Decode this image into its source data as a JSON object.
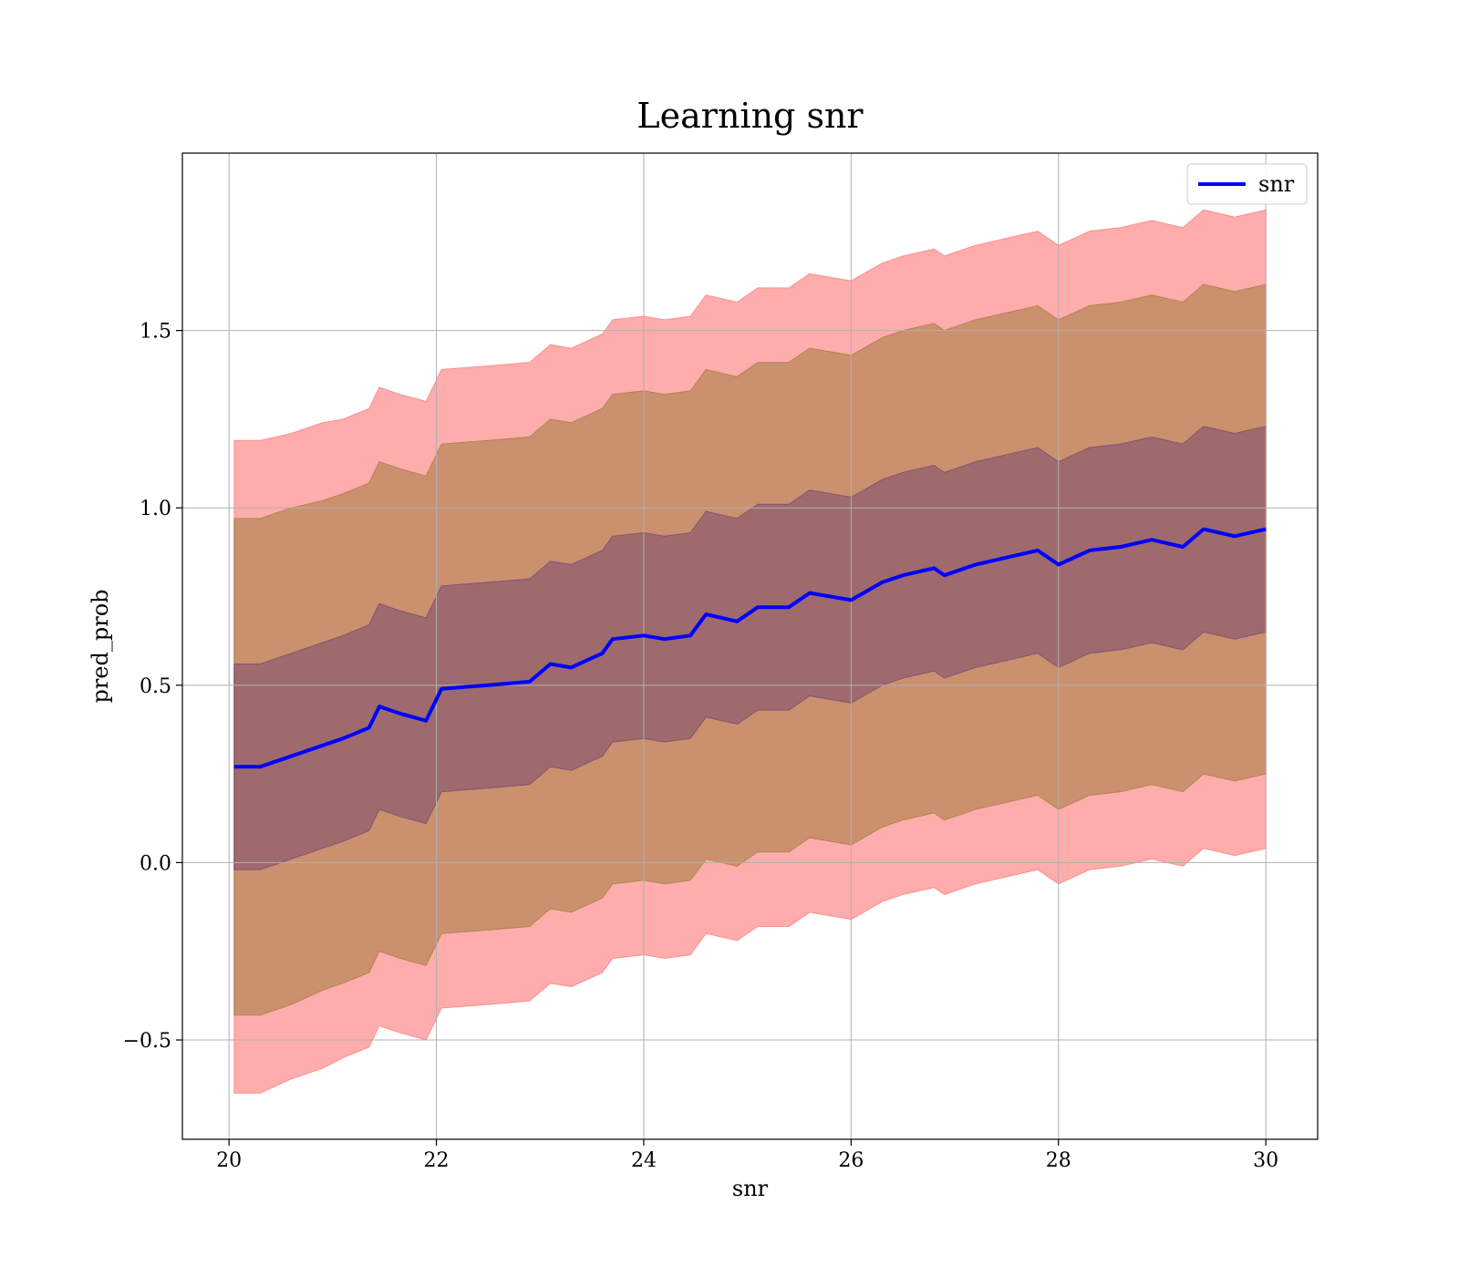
{
  "chart_data": {
    "type": "line",
    "title": "Learning snr",
    "xlabel": "snr",
    "ylabel": "pred_prob",
    "xlim": [
      19.55,
      30.5
    ],
    "ylim": [
      -0.78,
      2.0
    ],
    "x_ticks": [
      20,
      22,
      24,
      26,
      28,
      30
    ],
    "x_tick_labels": [
      "20",
      "22",
      "24",
      "26",
      "28",
      "30"
    ],
    "y_ticks": [
      -0.5,
      0.0,
      0.5,
      1.0,
      1.5
    ],
    "y_tick_labels": [
      "−0.5",
      "0.0",
      "0.5",
      "1.0",
      "1.5"
    ],
    "grid": true,
    "legend": {
      "position": "top-right",
      "entries": [
        "snr"
      ]
    },
    "series": [
      {
        "name": "snr",
        "color": "#0000ff",
        "x": [
          20.05,
          20.3,
          20.6,
          20.9,
          21.1,
          21.35,
          21.45,
          21.65,
          21.9,
          22.05,
          22.5,
          22.9,
          23.1,
          23.3,
          23.6,
          23.7,
          24.0,
          24.2,
          24.45,
          24.6,
          24.9,
          25.1,
          25.4,
          25.6,
          26.0,
          26.3,
          26.5,
          26.8,
          26.9,
          27.2,
          27.5,
          27.8,
          28.0,
          28.3,
          28.6,
          28.9,
          29.2,
          29.4,
          29.7,
          30.0
        ],
        "y": [
          0.27,
          0.27,
          0.3,
          0.33,
          0.35,
          0.38,
          0.44,
          0.42,
          0.4,
          0.49,
          0.5,
          0.51,
          0.56,
          0.55,
          0.59,
          0.63,
          0.64,
          0.63,
          0.64,
          0.7,
          0.68,
          0.72,
          0.72,
          0.76,
          0.74,
          0.79,
          0.81,
          0.83,
          0.81,
          0.84,
          0.86,
          0.88,
          0.84,
          0.88,
          0.89,
          0.91,
          0.89,
          0.94,
          0.92,
          0.94
        ]
      }
    ],
    "bands": [
      {
        "sigma": 3,
        "color": "#ff8080",
        "opacity": 0.65,
        "half_width": [
          0.92,
          0.92,
          0.91,
          0.91,
          0.9,
          0.9,
          0.9,
          0.9,
          0.9,
          0.9,
          0.9,
          0.9,
          0.9,
          0.9,
          0.9,
          0.9,
          0.9,
          0.9,
          0.9,
          0.9,
          0.9,
          0.9,
          0.9,
          0.9,
          0.9,
          0.9,
          0.9,
          0.9,
          0.9,
          0.9,
          0.9,
          0.9,
          0.9,
          0.9,
          0.9,
          0.9,
          0.9,
          0.9,
          0.9,
          0.9
        ]
      },
      {
        "sigma": 2,
        "color": "#a87e45",
        "opacity": 0.6,
        "half_width": [
          0.7,
          0.7,
          0.7,
          0.69,
          0.69,
          0.69,
          0.69,
          0.69,
          0.69,
          0.69,
          0.69,
          0.69,
          0.69,
          0.69,
          0.69,
          0.69,
          0.69,
          0.69,
          0.69,
          0.69,
          0.69,
          0.69,
          0.69,
          0.69,
          0.69,
          0.69,
          0.69,
          0.69,
          0.69,
          0.69,
          0.69,
          0.69,
          0.69,
          0.69,
          0.69,
          0.69,
          0.69,
          0.69,
          0.69,
          0.69
        ]
      },
      {
        "sigma": 1,
        "color": "#7a4a70",
        "opacity": 0.55,
        "half_width": [
          0.29,
          0.29,
          0.29,
          0.29,
          0.29,
          0.29,
          0.29,
          0.29,
          0.29,
          0.29,
          0.29,
          0.29,
          0.29,
          0.29,
          0.29,
          0.29,
          0.29,
          0.29,
          0.29,
          0.29,
          0.29,
          0.29,
          0.29,
          0.29,
          0.29,
          0.29,
          0.29,
          0.29,
          0.29,
          0.29,
          0.29,
          0.29,
          0.29,
          0.29,
          0.29,
          0.29,
          0.29,
          0.29,
          0.29,
          0.29
        ]
      }
    ]
  }
}
